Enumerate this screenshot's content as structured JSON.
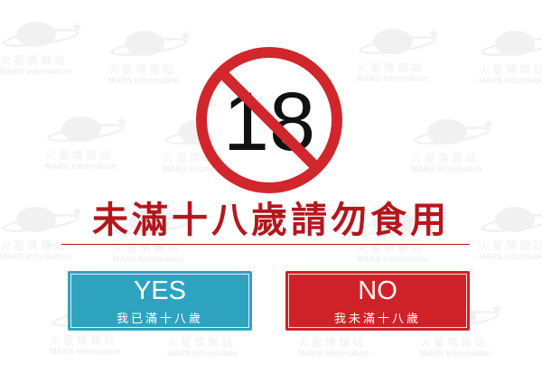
{
  "watermark": {
    "cn_text": "火星情報站",
    "en_text": "MARS Information"
  },
  "sign": {
    "number": "18",
    "icon": "no-under-18-icon",
    "ring_color": "#d0262c"
  },
  "title": "未滿十八歲請勿食用",
  "buttons": {
    "yes": {
      "label": "YES",
      "sublabel": "我已滿十八歲",
      "color": "#2ea3bf"
    },
    "no": {
      "label": "NO",
      "sublabel": "我未滿十八歲",
      "color": "#cf2228"
    }
  }
}
